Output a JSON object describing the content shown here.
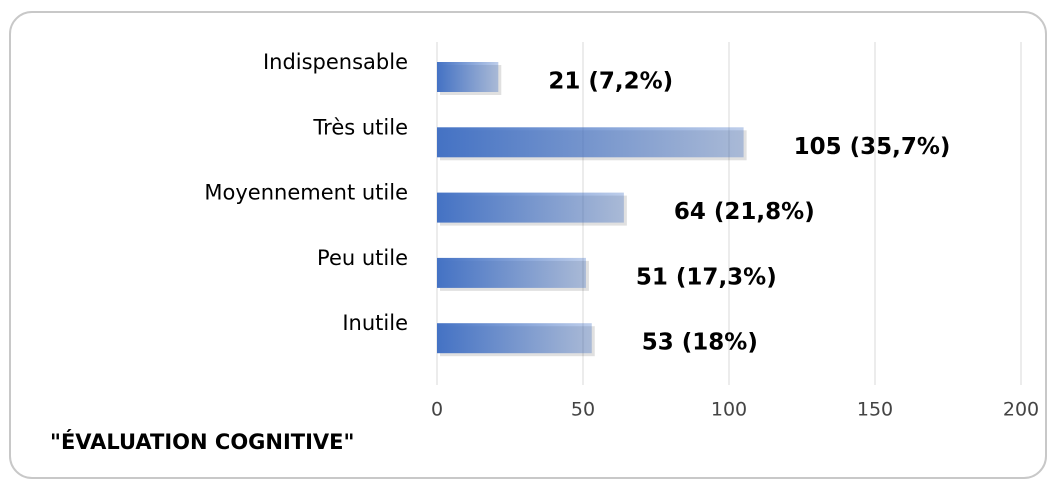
{
  "chart_data": {
    "type": "barh",
    "title": "\"ÉVALUATION COGNITIVE\"",
    "categories": [
      "Indispensable",
      "Très utile",
      "Moyennement utile",
      "Peu utile",
      "Inutile"
    ],
    "values": [
      21,
      105,
      64,
      51,
      53
    ],
    "value_labels": [
      "21 (7,2%)",
      "105 (35,7%)",
      "64 (21,8%)",
      "51 (17,3%)",
      "53 (18%)"
    ],
    "color": "#4472c4",
    "xlim": [
      0,
      200
    ],
    "xticks": [
      0,
      50,
      100,
      150,
      200
    ],
    "grid": true
  }
}
